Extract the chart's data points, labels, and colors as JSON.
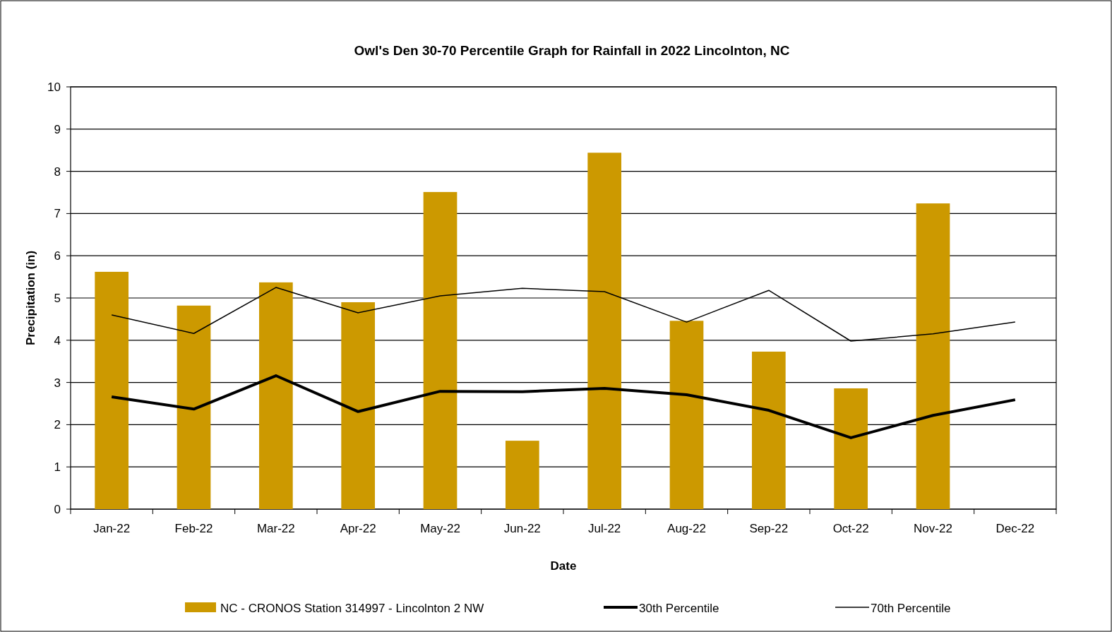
{
  "chart_data": {
    "type": "bar",
    "title": "Owl's Den 30-70 Percentile Graph for Rainfall in 2022 Lincolnton, NC",
    "xlabel": "Date",
    "ylabel": "Precipitation (in)",
    "categories": [
      "Jan-22",
      "Feb-22",
      "Mar-22",
      "Apr-22",
      "May-22",
      "Jun-22",
      "Jul-22",
      "Aug-22",
      "Sep-22",
      "Oct-22",
      "Nov-22",
      "Dec-22"
    ],
    "series": [
      {
        "name": "NC - CRONOS Station 314997 - Lincolnton 2 NW",
        "color": "#cc9900",
        "values": [
          5.62,
          4.82,
          5.37,
          4.9,
          7.51,
          1.62,
          8.44,
          4.46,
          3.73,
          2.86,
          7.24,
          null
        ]
      },
      {
        "name": "30th Percentile",
        "type": "line",
        "color": "#000000",
        "values": [
          2.66,
          2.37,
          3.16,
          2.31,
          2.79,
          2.78,
          2.86,
          2.71,
          2.34,
          1.69,
          2.22,
          2.59
        ]
      },
      {
        "name": "70th Percentile",
        "type": "line",
        "color": "#000000",
        "values": [
          4.6,
          4.16,
          5.25,
          4.65,
          5.05,
          5.23,
          5.15,
          4.43,
          5.18,
          3.98,
          4.15,
          4.43
        ]
      }
    ],
    "ylim": [
      0,
      10
    ],
    "yticks": [
      0,
      1,
      2,
      3,
      4,
      5,
      6,
      7,
      8,
      9,
      10
    ],
    "grid": "y",
    "legend": "bottom",
    "marker": "none",
    "line_style": "solid"
  }
}
